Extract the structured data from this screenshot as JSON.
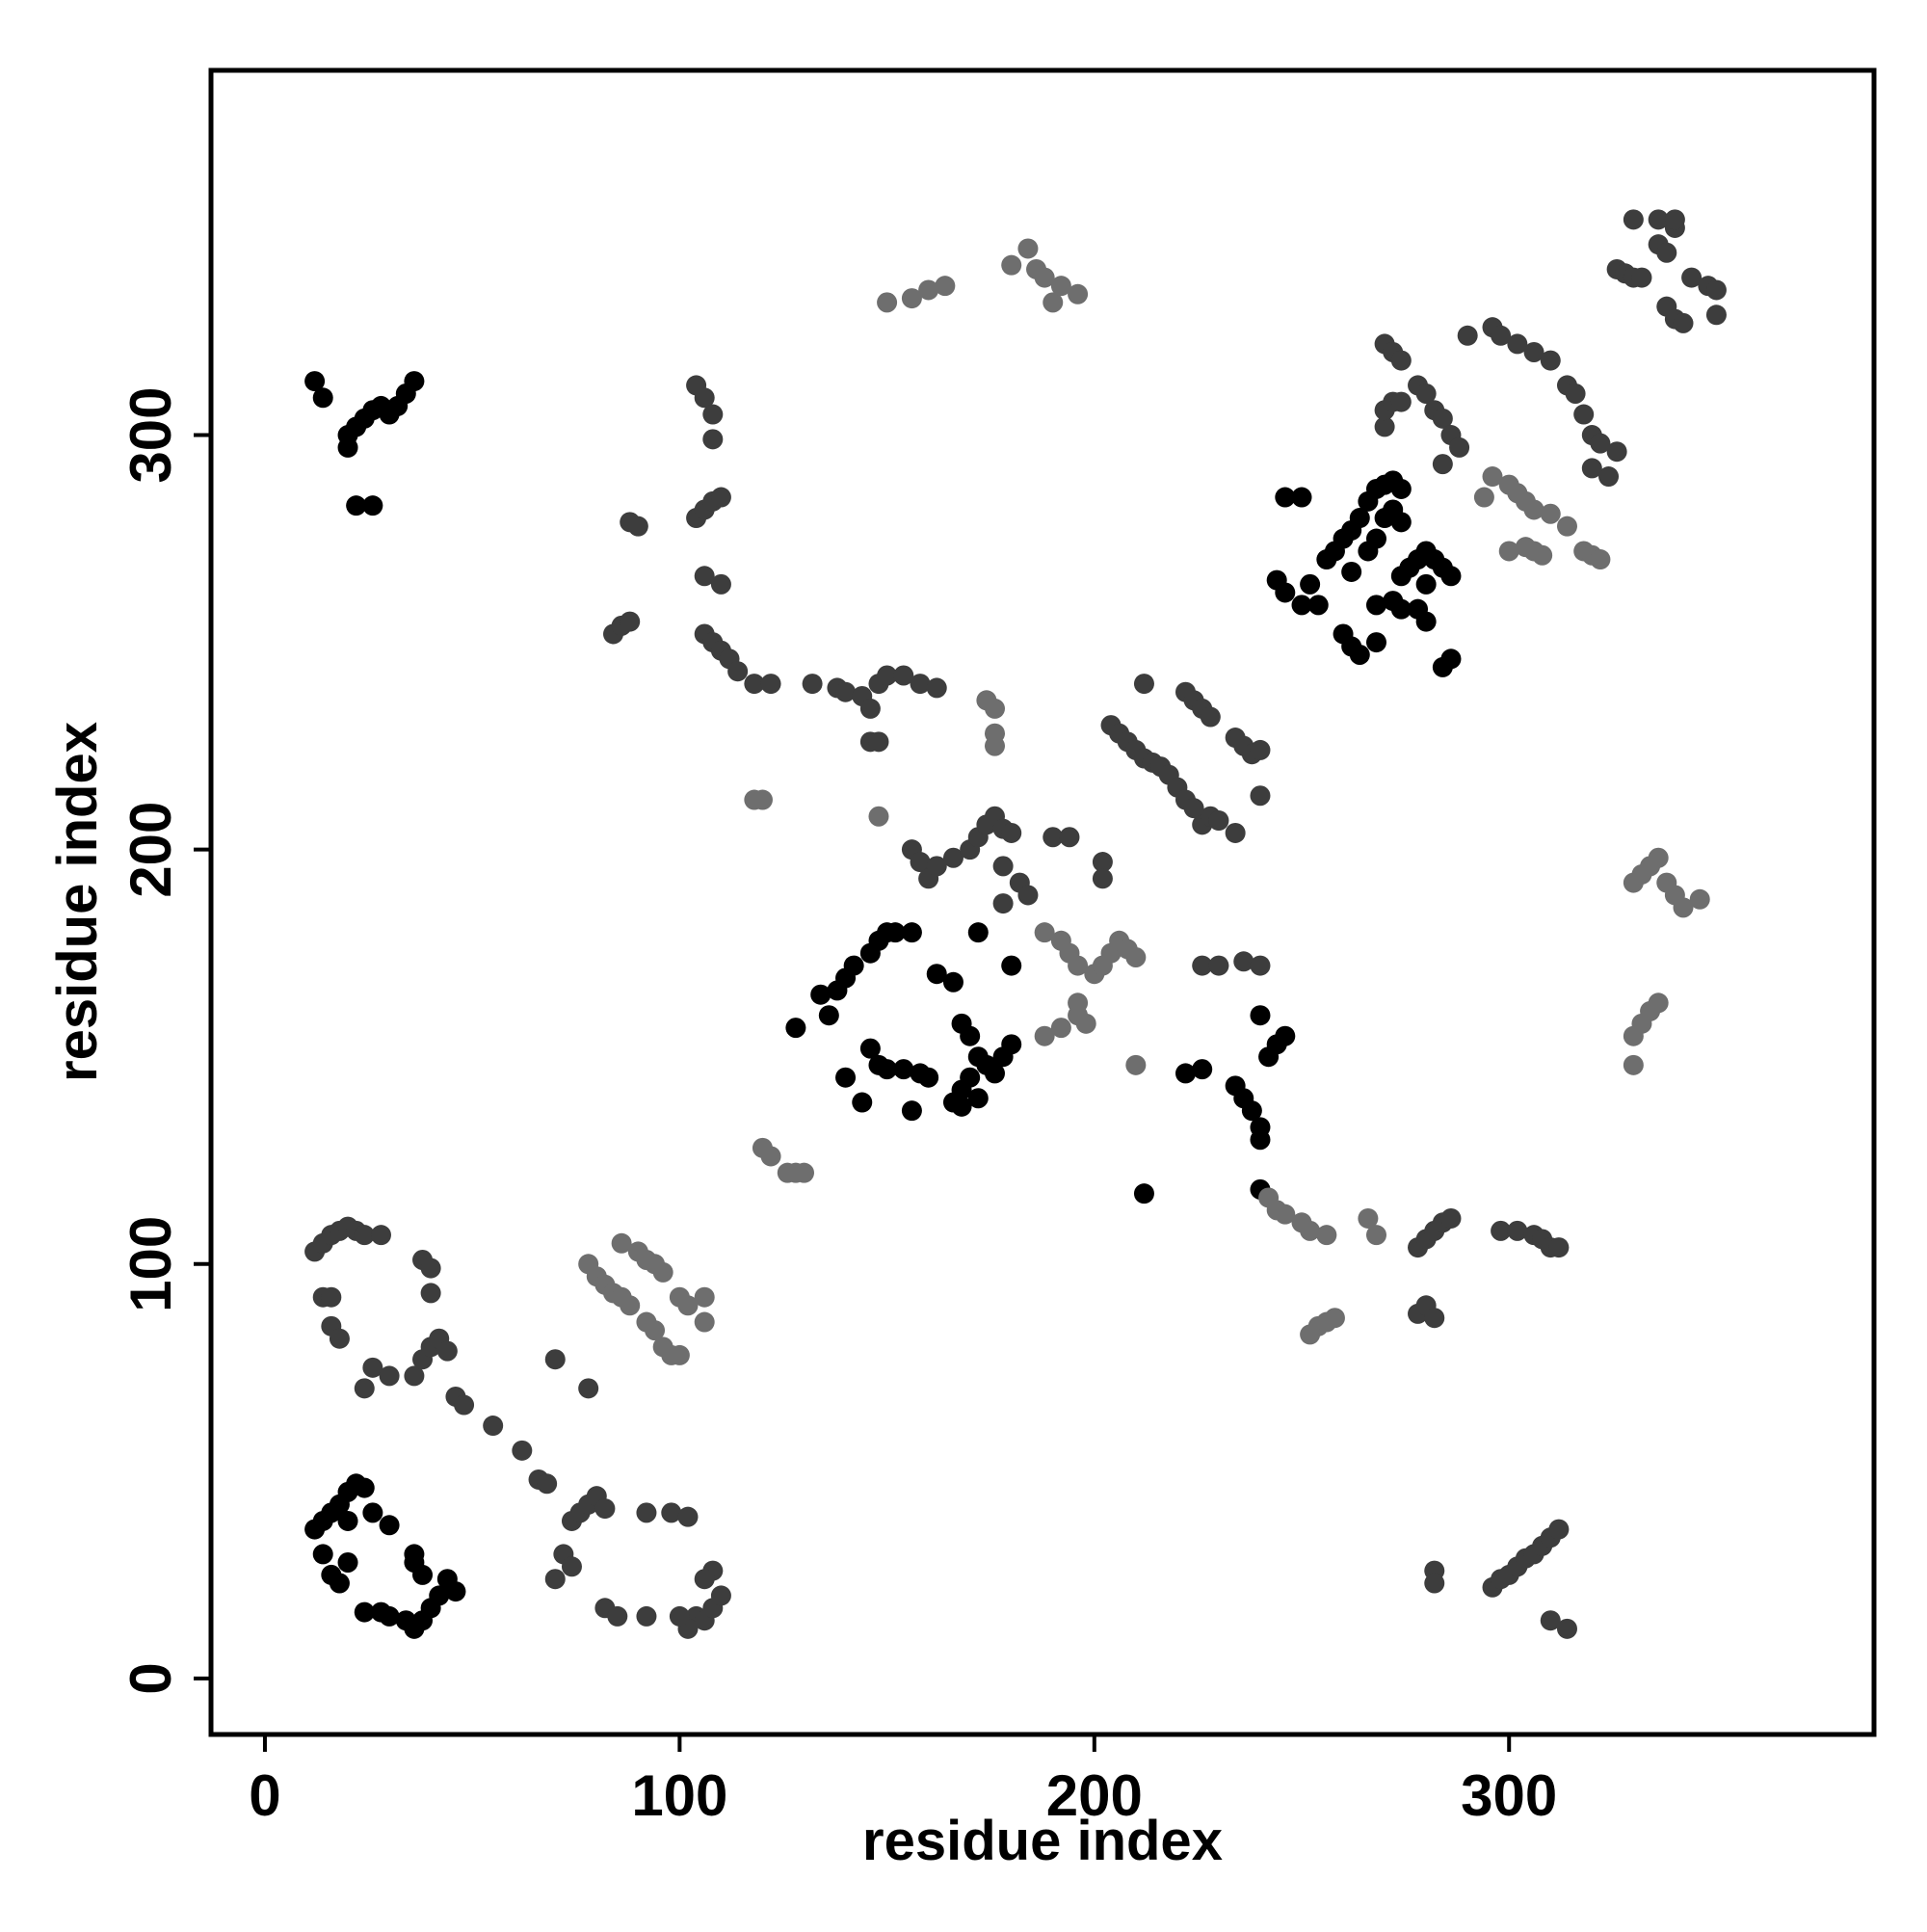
{
  "chart_data": {
    "type": "scatter",
    "x_label": "residue index",
    "y_label": "residue index",
    "xlim": [
      -13,
      388
    ],
    "ylim": [
      -13.5,
      388
    ],
    "xticks": [
      0,
      100,
      200,
      300
    ],
    "yticks": [
      0,
      100,
      200,
      300
    ],
    "grid": false,
    "series": [
      {
        "color": "#000000",
        "x": [
          12,
          14,
          16,
          18,
          20,
          22,
          24,
          20,
          26,
          30,
          14,
          16,
          18,
          20,
          24,
          28,
          30,
          34,
          36,
          38,
          40,
          42,
          46,
          44,
          38,
          36,
          36,
          12,
          14,
          20,
          22,
          24,
          26,
          28,
          30,
          32,
          34,
          36,
          22,
          26,
          20,
          148,
          150,
          152,
          156,
          146,
          142,
          140,
          138,
          136,
          134,
          128,
          140,
          144,
          146,
          148,
          150,
          154,
          156,
          158,
          160,
          162,
          166,
          168,
          170,
          172,
          174,
          176,
          178,
          180,
          172,
          168,
          166,
          168,
          170,
          172,
          180,
          222,
          226,
          234,
          236,
          238,
          240,
          240,
          240,
          242,
          244,
          246,
          240,
          212,
          246,
          250,
          244,
          246,
          250,
          254,
          252,
          256,
          258,
          260,
          262,
          264,
          266,
          268,
          270,
          272,
          274,
          262,
          266,
          268,
          270,
          272,
          274,
          260,
          262,
          264,
          268,
          268,
          272,
          274,
          276,
          278,
          280,
          282,
          284,
          286,
          278,
          274,
          280,
          286,
          284,
          280
        ],
        "values": [
          36,
          38,
          40,
          42,
          45,
          47,
          46,
          38,
          40,
          37,
          30,
          25,
          23,
          28,
          16,
          16,
          15,
          14,
          12,
          14,
          17,
          20,
          21,
          24,
          25,
          28,
          30,
          313,
          309,
          300,
          302,
          304,
          306,
          307,
          305,
          307,
          310,
          313,
          283,
          283,
          297,
          178,
          180,
          180,
          180,
          175,
          172,
          169,
          166,
          160,
          165,
          157,
          145,
          139,
          152,
          148,
          147,
          147,
          137,
          146,
          145,
          170,
          168,
          158,
          155,
          150,
          148,
          146,
          150,
          153,
          140,
          138,
          139,
          142,
          145,
          180,
          172,
          146,
          147,
          143,
          140,
          137,
          133,
          130,
          118,
          150,
          153,
          155,
          160,
          117,
          285,
          285,
          265,
          262,
          259,
          259,
          264,
          270,
          272,
          275,
          277,
          280,
          284,
          287,
          288,
          289,
          287,
          267,
          272,
          275,
          280,
          282,
          279,
          252,
          249,
          247,
          250,
          259,
          260,
          266,
          268,
          270,
          272,
          270,
          268,
          266,
          258,
          258,
          255,
          246,
          244,
          264
        ]
      },
      {
        "color": "#3d3d3d",
        "x": [
          70,
          72,
          74,
          74,
          76,
          78,
          80,
          82,
          82,
          85,
          92,
          92,
          98,
          102,
          104,
          106,
          108,
          110,
          108,
          106,
          102,
          100,
          12,
          14,
          16,
          18,
          20,
          22,
          24,
          28,
          14,
          16,
          18,
          16,
          24,
          26,
          30,
          36,
          38,
          40,
          42,
          44,
          38,
          40,
          40,
          46,
          48,
          55,
          62,
          66,
          68,
          70,
          78,
          84,
          86,
          88,
          88,
          90,
          104,
          106,
          108,
          110,
          104,
          106,
          108,
          108,
          106,
          110,
          106,
          108,
          110,
          112,
          114,
          118,
          122,
          132,
          138,
          140,
          144,
          146,
          148,
          150,
          154,
          158,
          162,
          146,
          148,
          156,
          158,
          160,
          162,
          166,
          170,
          172,
          174,
          176,
          178,
          180,
          178,
          182,
          184,
          178,
          190,
          194,
          202,
          202,
          204,
          206,
          208,
          210,
          212,
          214,
          216,
          218,
          212,
          220,
          222,
          224,
          226,
          228,
          230,
          222,
          224,
          226,
          228,
          234,
          236,
          238,
          240,
          240,
          234,
          226,
          230,
          236,
          240,
          278,
          280,
          282,
          284,
          286,
          278,
          280,
          282,
          298,
          302,
          306,
          308,
          310,
          312,
          282,
          282,
          296,
          298,
          300,
          302,
          304,
          306,
          308,
          310,
          312,
          310,
          314,
          270,
          272,
          274,
          270,
          270,
          272,
          274,
          278,
          280,
          282,
          284,
          286,
          288,
          284,
          290,
          296,
          298,
          302,
          306,
          310,
          314,
          316,
          318,
          320,
          322,
          326,
          320,
          324,
          326,
          328,
          330,
          332,
          336,
          338,
          340,
          338,
          340,
          342,
          344,
          348,
          350,
          350,
          330,
          336,
          340
        ],
        "values": [
          24,
          30,
          27,
          38,
          40,
          42,
          44,
          41,
          17,
          15,
          15,
          40,
          40,
          39,
          15,
          14,
          17,
          20,
          26,
          24,
          12,
          15,
          103,
          105,
          107,
          108,
          109,
          108,
          107,
          107,
          92,
          85,
          82,
          92,
          70,
          75,
          73,
          73,
          77,
          80,
          82,
          79,
          101,
          99,
          93,
          68,
          66,
          61,
          55,
          48,
          47,
          77,
          70,
          252,
          254,
          255,
          279,
          278,
          280,
          282,
          284,
          285,
          312,
          309,
          305,
          299,
          266,
          264,
          252,
          250,
          248,
          246,
          243,
          240,
          240,
          240,
          239,
          238,
          237,
          234,
          240,
          242,
          242,
          240,
          239,
          226,
          226,
          200,
          197,
          193,
          196,
          198,
          200,
          203,
          206,
          208,
          205,
          204,
          196,
          192,
          189,
          187,
          203,
          203,
          197,
          193,
          230,
          228,
          226,
          224,
          222,
          221,
          220,
          218,
          240,
          215,
          212,
          210,
          206,
          208,
          207,
          238,
          236,
          234,
          232,
          227,
          225,
          223,
          224,
          213,
          204,
          172,
          172,
          173,
          172,
          104,
          106,
          108,
          110,
          111,
          88,
          90,
          87,
          108,
          108,
          107,
          106,
          104,
          104,
          26,
          23,
          22,
          24,
          25,
          27,
          29,
          30,
          32,
          34,
          36,
          14,
          12,
          322,
          320,
          318,
          302,
          306,
          308,
          308,
          312,
          310,
          306,
          304,
          300,
          297,
          293,
          324,
          326,
          324,
          322,
          320,
          318,
          312,
          310,
          305,
          300,
          298,
          296,
          292,
          290,
          340,
          339,
          338,
          338,
          346,
          344,
          350,
          331,
          328,
          327,
          338,
          336,
          335,
          329,
          352,
          352,
          352
        ]
      },
      {
        "color": "#6e6e6e",
        "x": [
          78,
          80,
          82,
          84,
          86,
          88,
          86,
          90,
          92,
          94,
          96,
          92,
          94,
          96,
          98,
          100,
          100,
          102,
          106,
          106,
          120,
          122,
          126,
          128,
          130,
          118,
          120,
          150,
          156,
          160,
          164,
          180,
          184,
          186,
          188,
          190,
          192,
          196,
          174,
          176,
          176,
          176,
          148,
          188,
          192,
          194,
          196,
          200,
          202,
          204,
          206,
          208,
          210,
          196,
          198,
          196,
          192,
          188,
          210,
          242,
          244,
          246,
          250,
          252,
          256,
          266,
          268,
          252,
          254,
          256,
          258,
          294,
          296,
          300,
          302,
          304,
          306,
          310,
          314,
          300,
          304,
          306,
          308,
          318,
          320,
          322,
          330,
          332,
          334,
          336,
          338,
          340,
          342,
          346,
          330,
          332,
          334,
          336,
          330
        ],
        "values": [
          100,
          97,
          95,
          93,
          92,
          90,
          105,
          103,
          101,
          100,
          98,
          86,
          84,
          80,
          78,
          78,
          92,
          90,
          92,
          86,
          128,
          126,
          122,
          122,
          122,
          212,
          212,
          332,
          333,
          335,
          336,
          341,
          345,
          340,
          338,
          332,
          336,
          334,
          236,
          234,
          228,
          225,
          208,
          180,
          178,
          175,
          172,
          170,
          172,
          175,
          178,
          176,
          174,
          160,
          158,
          163,
          157,
          155,
          148,
          116,
          113,
          112,
          110,
          108,
          107,
          111,
          107,
          83,
          85,
          86,
          87,
          285,
          290,
          288,
          286,
          284,
          282,
          281,
          278,
          272,
          273,
          272,
          271,
          272,
          271,
          270,
          192,
          194,
          196,
          198,
          192,
          189,
          186,
          188,
          155,
          158,
          161,
          163,
          148
        ]
      }
    ]
  }
}
